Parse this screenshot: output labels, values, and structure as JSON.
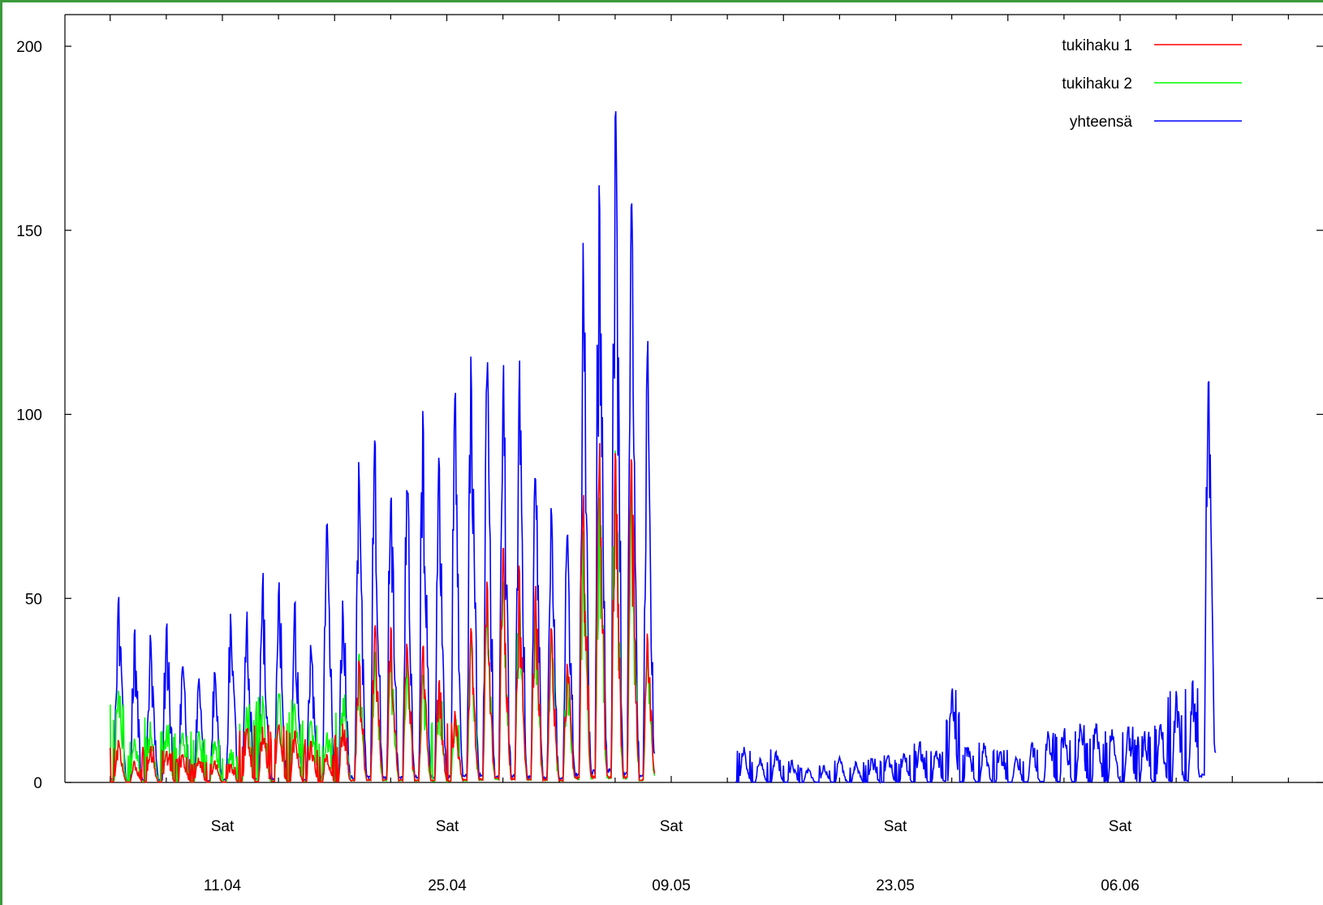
{
  "chart_data": {
    "type": "line",
    "title": "",
    "xlabel": "",
    "ylabel": "",
    "ylim": [
      0,
      200
    ],
    "yticks": [
      0,
      50,
      100,
      150,
      200
    ],
    "xticks": [
      {
        "day": "Sat",
        "date": "11.04"
      },
      {
        "day": "Sat",
        "date": "25.04"
      },
      {
        "day": "Sat",
        "date": "09.05"
      },
      {
        "day": "Sat",
        "date": "23.05"
      },
      {
        "day": "Sat",
        "date": "06.06"
      }
    ],
    "legend_position": "top-right",
    "grid": false,
    "series": [
      {
        "name": "tukihaku 1",
        "color": "#ff0000",
        "daily_peaks": [
          [
            "04.04",
            12
          ],
          [
            "05.04",
            6
          ],
          [
            "06.04",
            10
          ],
          [
            "07.04",
            9
          ],
          [
            "08.04",
            8
          ],
          [
            "09.04",
            7
          ],
          [
            "10.04",
            6
          ],
          [
            "11.04",
            5
          ],
          [
            "12.04",
            15
          ],
          [
            "13.04",
            16
          ],
          [
            "14.04",
            16
          ],
          [
            "15.04",
            15
          ],
          [
            "16.04",
            12
          ],
          [
            "17.04",
            8
          ],
          [
            "18.04",
            16
          ],
          [
            "19.04",
            35
          ],
          [
            "20.04",
            45
          ],
          [
            "21.04",
            43
          ],
          [
            "22.04",
            40
          ],
          [
            "23.04",
            38
          ],
          [
            "24.04",
            30
          ],
          [
            "25.04",
            20
          ],
          [
            "26.04",
            42
          ],
          [
            "27.04",
            55
          ],
          [
            "28.04",
            66
          ],
          [
            "29.04",
            60
          ],
          [
            "30.04",
            55
          ],
          [
            "01.05",
            45
          ],
          [
            "02.05",
            35
          ],
          [
            "03.05",
            80
          ],
          [
            "04.05",
            95
          ],
          [
            "05.05",
            98
          ],
          [
            "06.05",
            90
          ],
          [
            "07.05",
            42
          ]
        ]
      },
      {
        "name": "tukihaku 2",
        "color": "#00ff00",
        "daily_peaks": [
          [
            "04.04",
            25
          ],
          [
            "05.04",
            12
          ],
          [
            "06.04",
            18
          ],
          [
            "07.04",
            17
          ],
          [
            "08.04",
            15
          ],
          [
            "09.04",
            14
          ],
          [
            "10.04",
            12
          ],
          [
            "11.04",
            10
          ],
          [
            "12.04",
            22
          ],
          [
            "13.04",
            24
          ],
          [
            "14.04",
            25
          ],
          [
            "15.04",
            24
          ],
          [
            "16.04",
            18
          ],
          [
            "17.04",
            14
          ],
          [
            "18.04",
            24
          ],
          [
            "19.04",
            35
          ],
          [
            "20.04",
            38
          ],
          [
            "21.04",
            36
          ],
          [
            "22.04",
            34
          ],
          [
            "23.04",
            30
          ],
          [
            "24.04",
            25
          ],
          [
            "25.04",
            18
          ],
          [
            "26.04",
            40
          ],
          [
            "27.04",
            50
          ],
          [
            "28.04",
            58
          ],
          [
            "29.04",
            55
          ],
          [
            "30.04",
            50
          ],
          [
            "01.05",
            40
          ],
          [
            "02.05",
            32
          ],
          [
            "03.05",
            70
          ],
          [
            "04.05",
            85
          ],
          [
            "05.05",
            92
          ],
          [
            "06.05",
            80
          ],
          [
            "07.05",
            38
          ]
        ]
      },
      {
        "name": "yhteensä",
        "color": "#0000ff",
        "daily_peaks": [
          [
            "04.04",
            53
          ],
          [
            "05.04",
            42
          ],
          [
            "06.04",
            43
          ],
          [
            "07.04",
            44
          ],
          [
            "08.04",
            32
          ],
          [
            "09.04",
            30
          ],
          [
            "10.04",
            31
          ],
          [
            "11.04",
            47
          ],
          [
            "12.04",
            47
          ],
          [
            "13.04",
            60
          ],
          [
            "14.04",
            58
          ],
          [
            "15.04",
            50
          ],
          [
            "16.04",
            40
          ],
          [
            "17.04",
            78
          ],
          [
            "18.04",
            50
          ],
          [
            "19.04",
            92
          ],
          [
            "20.04",
            98
          ],
          [
            "21.04",
            85
          ],
          [
            "22.04",
            88
          ],
          [
            "23.04",
            102
          ],
          [
            "24.04",
            95
          ],
          [
            "25.04",
            108
          ],
          [
            "26.04",
            118
          ],
          [
            "27.04",
            118
          ],
          [
            "28.04",
            117
          ],
          [
            "29.04",
            115
          ],
          [
            "30.04",
            93
          ],
          [
            "01.05",
            75
          ],
          [
            "02.05",
            71
          ],
          [
            "03.05",
            147
          ],
          [
            "04.05",
            172
          ],
          [
            "05.05",
            200
          ],
          [
            "06.05",
            165
          ],
          [
            "07.05",
            120
          ],
          [
            "13.05",
            10
          ],
          [
            "14.05",
            7
          ],
          [
            "15.05",
            9
          ],
          [
            "16.05",
            6
          ],
          [
            "17.05",
            4
          ],
          [
            "18.05",
            5
          ],
          [
            "19.05",
            7
          ],
          [
            "20.05",
            6
          ],
          [
            "21.05",
            7
          ],
          [
            "22.05",
            8
          ],
          [
            "23.05",
            8
          ],
          [
            "24.05",
            11
          ],
          [
            "25.05",
            9
          ],
          [
            "26.05",
            27
          ],
          [
            "27.05",
            10
          ],
          [
            "28.05",
            12
          ],
          [
            "29.05",
            9
          ],
          [
            "30.05",
            7
          ],
          [
            "31.05",
            12
          ],
          [
            "01.06",
            14
          ],
          [
            "02.06",
            15
          ],
          [
            "03.06",
            16
          ],
          [
            "04.06",
            17
          ],
          [
            "05.06",
            15
          ],
          [
            "06.06",
            16
          ],
          [
            "07.06",
            14
          ],
          [
            "08.06",
            17
          ],
          [
            "09.06",
            25
          ],
          [
            "10.06",
            28
          ],
          [
            "11.06",
            115
          ]
        ]
      }
    ]
  }
}
